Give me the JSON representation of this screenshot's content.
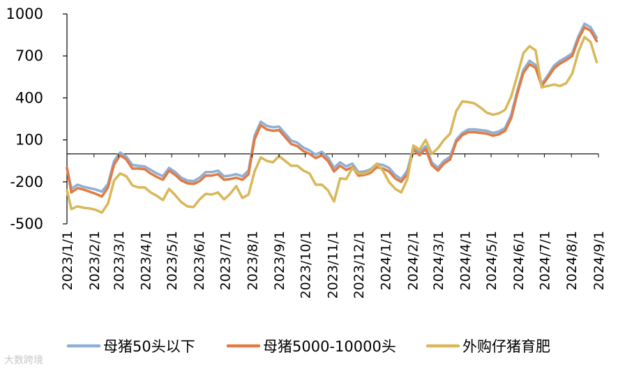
{
  "chart_data": {
    "type": "line",
    "title": "",
    "xlabel": "",
    "ylabel": "",
    "ylim": [
      -500,
      1000
    ],
    "yticks": [
      1000,
      700,
      400,
      100,
      -200,
      -500
    ],
    "x_ticks": [
      "2023/1/1",
      "2023/2/1",
      "2023/3/1",
      "2023/4/1",
      "2023/5/1",
      "2023/6/1",
      "2023/7/1",
      "2023/8/1",
      "2023/9/1",
      "2023/10/1",
      "2023/11/1",
      "2023/12/1",
      "2024/1/1",
      "2024/2/1",
      "2024/3/1",
      "2024/4/1",
      "2024/5/1",
      "2024/6/1",
      "2024/7/1",
      "2024/8/1",
      "2024/9/1"
    ],
    "x_range": [
      "2023/1/1",
      "2024/9/1"
    ],
    "grid": false,
    "legend_position": "bottom",
    "series": [
      {
        "name": "母猪50头以下",
        "color": "#8FAFD4",
        "points": [
          [
            "2023/1/1",
            -100
          ],
          [
            "2023/1/6",
            -250
          ],
          [
            "2023/1/13",
            -220
          ],
          [
            "2023/1/20",
            -235
          ],
          [
            "2023/1/27",
            -245
          ],
          [
            "2023/2/3",
            -255
          ],
          [
            "2023/2/10",
            -270
          ],
          [
            "2023/2/17",
            -215
          ],
          [
            "2023/2/24",
            -50
          ],
          [
            "2023/3/3",
            10
          ],
          [
            "2023/3/10",
            -20
          ],
          [
            "2023/3/17",
            -80
          ],
          [
            "2023/3/24",
            -85
          ],
          [
            "2023/3/31",
            -90
          ],
          [
            "2023/4/7",
            -115
          ],
          [
            "2023/4/14",
            -140
          ],
          [
            "2023/4/21",
            -160
          ],
          [
            "2023/4/28",
            -100
          ],
          [
            "2023/5/5",
            -130
          ],
          [
            "2023/5/12",
            -170
          ],
          [
            "2023/5/19",
            -190
          ],
          [
            "2023/5/26",
            -195
          ],
          [
            "2023/6/2",
            -170
          ],
          [
            "2023/6/9",
            -130
          ],
          [
            "2023/6/16",
            -130
          ],
          [
            "2023/6/23",
            -120
          ],
          [
            "2023/6/30",
            -160
          ],
          [
            "2023/7/7",
            -155
          ],
          [
            "2023/7/14",
            -145
          ],
          [
            "2023/7/21",
            -160
          ],
          [
            "2023/7/28",
            -120
          ],
          [
            "2023/8/4",
            130
          ],
          [
            "2023/8/11",
            230
          ],
          [
            "2023/8/18",
            200
          ],
          [
            "2023/8/25",
            190
          ],
          [
            "2023/9/1",
            195
          ],
          [
            "2023/9/8",
            145
          ],
          [
            "2023/9/15",
            95
          ],
          [
            "2023/9/22",
            80
          ],
          [
            "2023/9/29",
            45
          ],
          [
            "2023/10/6",
            25
          ],
          [
            "2023/10/13",
            -5
          ],
          [
            "2023/10/20",
            15
          ],
          [
            "2023/10/27",
            -25
          ],
          [
            "2023/11/3",
            -100
          ],
          [
            "2023/11/10",
            -60
          ],
          [
            "2023/11/17",
            -90
          ],
          [
            "2023/11/24",
            -70
          ],
          [
            "2023/12/1",
            -130
          ],
          [
            "2023/12/8",
            -125
          ],
          [
            "2023/12/15",
            -110
          ],
          [
            "2023/12/22",
            -70
          ],
          [
            "2023/12/29",
            -80
          ],
          [
            "2024/1/5",
            -100
          ],
          [
            "2024/1/12",
            -150
          ],
          [
            "2024/1/19",
            -180
          ],
          [
            "2024/1/26",
            -120
          ],
          [
            "2024/2/2",
            50
          ],
          [
            "2024/2/9",
            10
          ],
          [
            "2024/2/16",
            55
          ],
          [
            "2024/2/23",
            -60
          ],
          [
            "2024/3/1",
            -100
          ],
          [
            "2024/3/8",
            -50
          ],
          [
            "2024/3/15",
            -20
          ],
          [
            "2024/3/22",
            100
          ],
          [
            "2024/3/29",
            150
          ],
          [
            "2024/4/5",
            175
          ],
          [
            "2024/4/12",
            175
          ],
          [
            "2024/4/19",
            170
          ],
          [
            "2024/4/26",
            165
          ],
          [
            "2024/5/3",
            150
          ],
          [
            "2024/5/10",
            160
          ],
          [
            "2024/5/17",
            185
          ],
          [
            "2024/5/24",
            280
          ],
          [
            "2024/5/31",
            450
          ],
          [
            "2024/6/7",
            600
          ],
          [
            "2024/6/14",
            665
          ],
          [
            "2024/6/21",
            635
          ],
          [
            "2024/6/28",
            500
          ],
          [
            "2024/7/5",
            560
          ],
          [
            "2024/7/12",
            630
          ],
          [
            "2024/7/19",
            665
          ],
          [
            "2024/7/26",
            690
          ],
          [
            "2024/8/2",
            720
          ],
          [
            "2024/8/9",
            840
          ],
          [
            "2024/8/16",
            930
          ],
          [
            "2024/8/23",
            905
          ],
          [
            "2024/8/30",
            830
          ]
        ]
      },
      {
        "name": "母猪5000-10000头",
        "color": "#E07B45",
        "points": [
          [
            "2023/1/1",
            -100
          ],
          [
            "2023/1/6",
            -275
          ],
          [
            "2023/1/13",
            -245
          ],
          [
            "2023/1/20",
            -255
          ],
          [
            "2023/1/27",
            -270
          ],
          [
            "2023/2/3",
            -285
          ],
          [
            "2023/2/10",
            -305
          ],
          [
            "2023/2/17",
            -240
          ],
          [
            "2023/2/24",
            -75
          ],
          [
            "2023/3/3",
            -10
          ],
          [
            "2023/3/10",
            -40
          ],
          [
            "2023/3/17",
            -105
          ],
          [
            "2023/3/24",
            -105
          ],
          [
            "2023/3/31",
            -110
          ],
          [
            "2023/4/7",
            -140
          ],
          [
            "2023/4/14",
            -165
          ],
          [
            "2023/4/21",
            -185
          ],
          [
            "2023/4/28",
            -120
          ],
          [
            "2023/5/5",
            -150
          ],
          [
            "2023/5/12",
            -190
          ],
          [
            "2023/5/19",
            -210
          ],
          [
            "2023/5/26",
            -215
          ],
          [
            "2023/6/2",
            -195
          ],
          [
            "2023/6/9",
            -155
          ],
          [
            "2023/6/16",
            -155
          ],
          [
            "2023/6/23",
            -145
          ],
          [
            "2023/6/30",
            -185
          ],
          [
            "2023/7/7",
            -180
          ],
          [
            "2023/7/14",
            -170
          ],
          [
            "2023/7/21",
            -185
          ],
          [
            "2023/7/28",
            -145
          ],
          [
            "2023/8/4",
            105
          ],
          [
            "2023/8/11",
            205
          ],
          [
            "2023/8/18",
            175
          ],
          [
            "2023/8/25",
            165
          ],
          [
            "2023/9/1",
            170
          ],
          [
            "2023/9/8",
            120
          ],
          [
            "2023/9/15",
            70
          ],
          [
            "2023/9/22",
            55
          ],
          [
            "2023/9/29",
            20
          ],
          [
            "2023/10/6",
            0
          ],
          [
            "2023/10/13",
            -30
          ],
          [
            "2023/10/20",
            -10
          ],
          [
            "2023/10/27",
            -50
          ],
          [
            "2023/11/3",
            -125
          ],
          [
            "2023/11/10",
            -85
          ],
          [
            "2023/11/17",
            -115
          ],
          [
            "2023/11/24",
            -95
          ],
          [
            "2023/12/1",
            -155
          ],
          [
            "2023/12/8",
            -150
          ],
          [
            "2023/12/15",
            -135
          ],
          [
            "2023/12/22",
            -95
          ],
          [
            "2023/12/29",
            -105
          ],
          [
            "2024/1/5",
            -125
          ],
          [
            "2024/1/12",
            -175
          ],
          [
            "2024/1/19",
            -200
          ],
          [
            "2024/1/26",
            -145
          ],
          [
            "2024/2/2",
            30
          ],
          [
            "2024/2/9",
            -10
          ],
          [
            "2024/2/16",
            35
          ],
          [
            "2024/2/23",
            -80
          ],
          [
            "2024/3/1",
            -120
          ],
          [
            "2024/3/8",
            -70
          ],
          [
            "2024/3/15",
            -40
          ],
          [
            "2024/3/22",
            85
          ],
          [
            "2024/3/29",
            135
          ],
          [
            "2024/4/5",
            155
          ],
          [
            "2024/4/12",
            155
          ],
          [
            "2024/4/19",
            150
          ],
          [
            "2024/4/26",
            145
          ],
          [
            "2024/5/3",
            130
          ],
          [
            "2024/5/10",
            140
          ],
          [
            "2024/5/17",
            165
          ],
          [
            "2024/5/24",
            255
          ],
          [
            "2024/5/31",
            430
          ],
          [
            "2024/6/7",
            580
          ],
          [
            "2024/6/14",
            640
          ],
          [
            "2024/6/21",
            615
          ],
          [
            "2024/6/28",
            485
          ],
          [
            "2024/7/5",
            545
          ],
          [
            "2024/7/12",
            610
          ],
          [
            "2024/7/19",
            645
          ],
          [
            "2024/7/26",
            670
          ],
          [
            "2024/8/2",
            700
          ],
          [
            "2024/8/9",
            820
          ],
          [
            "2024/8/16",
            905
          ],
          [
            "2024/8/23",
            880
          ],
          [
            "2024/8/30",
            805
          ]
        ]
      },
      {
        "name": "外购仔猪育肥",
        "color": "#D9B85A",
        "points": [
          [
            "2023/1/1",
            -260
          ],
          [
            "2023/1/6",
            -395
          ],
          [
            "2023/1/13",
            -375
          ],
          [
            "2023/1/20",
            -385
          ],
          [
            "2023/1/27",
            -390
          ],
          [
            "2023/2/3",
            -400
          ],
          [
            "2023/2/10",
            -420
          ],
          [
            "2023/2/17",
            -355
          ],
          [
            "2023/2/24",
            -190
          ],
          [
            "2023/3/3",
            -140
          ],
          [
            "2023/3/10",
            -160
          ],
          [
            "2023/3/17",
            -225
          ],
          [
            "2023/3/24",
            -240
          ],
          [
            "2023/3/31",
            -240
          ],
          [
            "2023/4/7",
            -275
          ],
          [
            "2023/4/14",
            -300
          ],
          [
            "2023/4/21",
            -330
          ],
          [
            "2023/4/28",
            -250
          ],
          [
            "2023/5/5",
            -295
          ],
          [
            "2023/5/12",
            -345
          ],
          [
            "2023/5/19",
            -375
          ],
          [
            "2023/5/26",
            -380
          ],
          [
            "2023/6/2",
            -325
          ],
          [
            "2023/6/9",
            -285
          ],
          [
            "2023/6/16",
            -290
          ],
          [
            "2023/6/23",
            -275
          ],
          [
            "2023/6/30",
            -325
          ],
          [
            "2023/7/7",
            -285
          ],
          [
            "2023/7/14",
            -230
          ],
          [
            "2023/7/21",
            -315
          ],
          [
            "2023/7/28",
            -290
          ],
          [
            "2023/8/4",
            -125
          ],
          [
            "2023/8/11",
            -25
          ],
          [
            "2023/8/18",
            -50
          ],
          [
            "2023/8/25",
            -60
          ],
          [
            "2023/9/1",
            -15
          ],
          [
            "2023/9/8",
            -50
          ],
          [
            "2023/9/15",
            -85
          ],
          [
            "2023/9/22",
            -85
          ],
          [
            "2023/9/29",
            -120
          ],
          [
            "2023/10/6",
            -140
          ],
          [
            "2023/10/13",
            -220
          ],
          [
            "2023/10/20",
            -220
          ],
          [
            "2023/10/27",
            -260
          ],
          [
            "2023/11/3",
            -340
          ],
          [
            "2023/11/10",
            -175
          ],
          [
            "2023/11/17",
            -180
          ],
          [
            "2023/11/24",
            -100
          ],
          [
            "2023/12/1",
            -140
          ],
          [
            "2023/12/8",
            -140
          ],
          [
            "2023/12/15",
            -120
          ],
          [
            "2023/12/22",
            -70
          ],
          [
            "2023/12/29",
            -120
          ],
          [
            "2024/1/5",
            -200
          ],
          [
            "2024/1/12",
            -250
          ],
          [
            "2024/1/19",
            -275
          ],
          [
            "2024/1/26",
            -180
          ],
          [
            "2024/2/2",
            60
          ],
          [
            "2024/2/9",
            30
          ],
          [
            "2024/2/16",
            100
          ],
          [
            "2024/2/23",
            0
          ],
          [
            "2024/3/1",
            40
          ],
          [
            "2024/3/8",
            100
          ],
          [
            "2024/3/15",
            145
          ],
          [
            "2024/3/22",
            305
          ],
          [
            "2024/3/29",
            375
          ],
          [
            "2024/4/5",
            370
          ],
          [
            "2024/4/12",
            360
          ],
          [
            "2024/4/19",
            330
          ],
          [
            "2024/4/26",
            295
          ],
          [
            "2024/5/3",
            280
          ],
          [
            "2024/5/10",
            290
          ],
          [
            "2024/5/17",
            315
          ],
          [
            "2024/5/24",
            410
          ],
          [
            "2024/5/31",
            560
          ],
          [
            "2024/6/7",
            720
          ],
          [
            "2024/6/14",
            770
          ],
          [
            "2024/6/21",
            740
          ],
          [
            "2024/6/28",
            475
          ],
          [
            "2024/7/5",
            485
          ],
          [
            "2024/7/12",
            495
          ],
          [
            "2024/7/19",
            485
          ],
          [
            "2024/7/26",
            505
          ],
          [
            "2024/8/2",
            575
          ],
          [
            "2024/8/9",
            730
          ],
          [
            "2024/8/16",
            835
          ],
          [
            "2024/8/23",
            800
          ],
          [
            "2024/8/30",
            655
          ]
        ]
      }
    ]
  },
  "watermark": "大数跨境"
}
